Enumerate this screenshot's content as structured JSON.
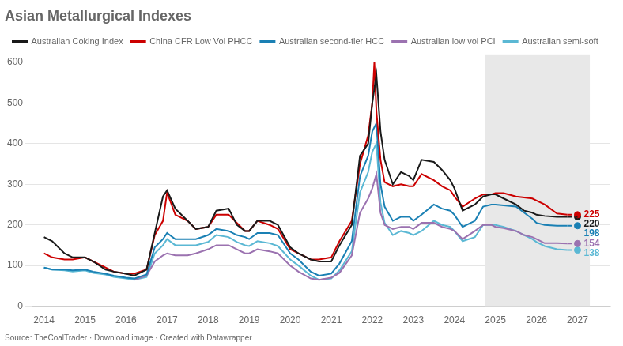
{
  "chart_data": {
    "type": "line",
    "title": "Asian Metallurgical Indexes",
    "subtitle": "Source: TheCoalTrader · Download image · Created with Datawrapper",
    "xlim": [
      2013.7,
      2027.8
    ],
    "xticks": [
      2014,
      2015,
      2016,
      2017,
      2018,
      2019,
      2020,
      2021,
      2022,
      2023,
      2024,
      2025,
      2026,
      2027
    ],
    "ylim": [
      0,
      620
    ],
    "yticks": [
      0,
      100,
      200,
      300,
      400,
      500,
      600
    ],
    "grid": "y",
    "legend": "upper left",
    "shaded_span": {
      "from": 2024.75,
      "to": 2027.3,
      "color": "#e8e8e8"
    },
    "series": [
      {
        "name": "Australian Coking Index",
        "color": "#1a1a1a",
        "line_style": "solid",
        "x": [
          2014.0,
          2014.2,
          2014.5,
          2014.7,
          2015.0,
          2015.2,
          2015.5,
          2015.7,
          2016.0,
          2016.2,
          2016.5,
          2016.7,
          2016.9,
          2017.0,
          2017.2,
          2017.5,
          2017.7,
          2018.0,
          2018.2,
          2018.5,
          2018.7,
          2018.9,
          2019.0,
          2019.2,
          2019.5,
          2019.7,
          2020.0,
          2020.2,
          2020.5,
          2020.7,
          2021.0,
          2021.2,
          2021.5,
          2021.7,
          2021.9,
          2022.0,
          2022.1,
          2022.2,
          2022.3,
          2022.5,
          2022.7,
          2022.9,
          2023.0,
          2023.2,
          2023.5,
          2023.7,
          2023.9,
          2024.0,
          2024.2,
          2024.5,
          2024.7,
          2024.9,
          2025.0,
          2025.2,
          2025.5,
          2025.7,
          2025.9,
          2026.0,
          2026.2,
          2026.5,
          2026.75
        ],
        "values": [
          170,
          160,
          130,
          120,
          120,
          110,
          90,
          85,
          80,
          75,
          90,
          180,
          270,
          285,
          240,
          210,
          190,
          195,
          235,
          240,
          200,
          185,
          185,
          210,
          210,
          200,
          145,
          130,
          115,
          110,
          110,
          150,
          200,
          370,
          400,
          500,
          570,
          430,
          360,
          300,
          330,
          320,
          310,
          360,
          355,
          335,
          310,
          290,
          235,
          250,
          270,
          275,
          275,
          265,
          250,
          235,
          230,
          225,
          222,
          220,
          220
        ],
        "projection": {
          "line_style": "dashed",
          "x": [
            2026.75,
            2027.0
          ],
          "values": [
            220,
            220
          ]
        }
      },
      {
        "name": "China CFR Low Vol PHCC",
        "color": "#cc0000",
        "line_style": "solid",
        "x": [
          2014.0,
          2014.2,
          2014.5,
          2014.7,
          2015.0,
          2015.2,
          2015.5,
          2015.7,
          2016.0,
          2016.2,
          2016.5,
          2016.7,
          2016.9,
          2017.0,
          2017.2,
          2017.5,
          2017.7,
          2018.0,
          2018.2,
          2018.5,
          2018.7,
          2018.9,
          2019.0,
          2019.2,
          2019.5,
          2019.7,
          2020.0,
          2020.2,
          2020.5,
          2020.7,
          2021.0,
          2021.2,
          2021.5,
          2021.7,
          2021.9,
          2022.0,
          2022.05,
          2022.1,
          2022.2,
          2022.3,
          2022.5,
          2022.7,
          2022.9,
          2023.0,
          2023.2,
          2023.5,
          2023.7,
          2023.9,
          2024.0,
          2024.2,
          2024.5,
          2024.7,
          2024.9,
          2025.0,
          2025.2,
          2025.5,
          2025.9,
          2026.0,
          2026.2,
          2026.5,
          2026.75
        ],
        "values": [
          130,
          120,
          115,
          115,
          120,
          110,
          95,
          85,
          80,
          80,
          90,
          175,
          210,
          280,
          225,
          210,
          190,
          195,
          225,
          225,
          205,
          185,
          185,
          210,
          200,
          190,
          140,
          130,
          115,
          115,
          120,
          160,
          210,
          350,
          420,
          500,
          600,
          480,
          360,
          305,
          295,
          300,
          295,
          295,
          325,
          310,
          295,
          285,
          270,
          245,
          265,
          275,
          275,
          278,
          278,
          270,
          265,
          260,
          250,
          228,
          225
        ],
        "projection": {
          "line_style": "dashed",
          "x": [
            2026.75,
            2027.0
          ],
          "values": [
            225,
            225
          ]
        }
      },
      {
        "name": "Australian second-tier HCC",
        "color": "#1a80b4",
        "line_style": "solid",
        "x": [
          2014.0,
          2014.2,
          2014.5,
          2014.7,
          2015.0,
          2015.2,
          2015.5,
          2015.7,
          2016.0,
          2016.2,
          2016.5,
          2016.7,
          2016.9,
          2017.0,
          2017.2,
          2017.5,
          2017.7,
          2018.0,
          2018.2,
          2018.5,
          2018.7,
          2018.9,
          2019.0,
          2019.2,
          2019.5,
          2019.7,
          2020.0,
          2020.2,
          2020.5,
          2020.7,
          2021.0,
          2021.2,
          2021.5,
          2021.7,
          2021.9,
          2022.0,
          2022.1,
          2022.2,
          2022.3,
          2022.5,
          2022.7,
          2022.9,
          2023.0,
          2023.2,
          2023.5,
          2023.7,
          2023.9,
          2024.0,
          2024.2,
          2024.5,
          2024.7,
          2024.9,
          2025.0,
          2025.2,
          2025.5,
          2025.7,
          2025.9,
          2026.0,
          2026.2,
          2026.5,
          2026.75
        ],
        "values": [
          95,
          90,
          90,
          88,
          90,
          85,
          80,
          75,
          70,
          68,
          78,
          145,
          165,
          180,
          165,
          165,
          165,
          175,
          190,
          185,
          175,
          170,
          165,
          180,
          180,
          175,
          130,
          115,
          85,
          75,
          80,
          105,
          160,
          320,
          370,
          430,
          450,
          300,
          245,
          210,
          220,
          220,
          210,
          225,
          250,
          240,
          235,
          225,
          195,
          210,
          245,
          250,
          250,
          248,
          245,
          230,
          215,
          205,
          200,
          198,
          198
        ],
        "projection": {
          "line_style": "dashed",
          "x": [
            2026.75,
            2027.0
          ],
          "values": [
            198,
            198
          ]
        }
      },
      {
        "name": "Australian low vol PCI",
        "color": "#9b72b0",
        "line_style": "solid",
        "x": [
          2016.2,
          2016.5,
          2016.7,
          2016.9,
          2017.0,
          2017.2,
          2017.5,
          2017.7,
          2018.0,
          2018.2,
          2018.5,
          2018.7,
          2018.9,
          2019.0,
          2019.2,
          2019.5,
          2019.7,
          2020.0,
          2020.2,
          2020.5,
          2020.7,
          2021.0,
          2021.2,
          2021.5,
          2021.7,
          2021.9,
          2022.0,
          2022.1,
          2022.2,
          2022.3,
          2022.5,
          2022.7,
          2022.9,
          2023.0,
          2023.2,
          2023.5,
          2023.7,
          2023.9,
          2024.0,
          2024.2,
          2024.5,
          2024.7,
          2024.9,
          2025.0,
          2025.2,
          2025.5,
          2025.7,
          2025.9,
          2026.0,
          2026.2,
          2026.5,
          2026.75
        ],
        "values": [
          65,
          75,
          110,
          125,
          130,
          125,
          125,
          130,
          140,
          150,
          150,
          140,
          130,
          130,
          140,
          135,
          130,
          100,
          85,
          68,
          65,
          70,
          82,
          125,
          230,
          265,
          290,
          325,
          230,
          200,
          190,
          195,
          195,
          190,
          205,
          205,
          195,
          190,
          185,
          165,
          185,
          200,
          200,
          195,
          192,
          185,
          175,
          170,
          165,
          155,
          155,
          154
        ],
        "projection": {
          "line_style": "dashed",
          "x": [
            2026.75,
            2027.0
          ],
          "values": [
            154,
            154
          ]
        }
      },
      {
        "name": "Australian semi-soft",
        "color": "#5bb8d4",
        "line_style": "solid",
        "x": [
          2014.0,
          2014.2,
          2014.5,
          2014.7,
          2015.0,
          2015.2,
          2015.5,
          2015.7,
          2016.0,
          2016.2,
          2016.5,
          2016.7,
          2016.9,
          2017.0,
          2017.2,
          2017.5,
          2017.7,
          2018.0,
          2018.2,
          2018.5,
          2018.7,
          2018.9,
          2019.0,
          2019.2,
          2019.5,
          2019.7,
          2020.0,
          2020.2,
          2020.5,
          2020.7,
          2021.0,
          2021.2,
          2021.5,
          2021.7,
          2021.9,
          2022.0,
          2022.1,
          2022.2,
          2022.3,
          2022.5,
          2022.7,
          2022.9,
          2023.0,
          2023.2,
          2023.5,
          2023.7,
          2023.9,
          2024.0,
          2024.2,
          2024.5,
          2024.7,
          2024.9,
          2025.0,
          2025.2,
          2025.5,
          2025.7,
          2025.9,
          2026.0,
          2026.2,
          2026.5,
          2026.75
        ],
        "values": [
          95,
          90,
          88,
          85,
          88,
          82,
          78,
          72,
          68,
          65,
          72,
          130,
          150,
          165,
          150,
          150,
          150,
          158,
          175,
          170,
          158,
          150,
          148,
          160,
          155,
          148,
          115,
          100,
          75,
          65,
          68,
          88,
          135,
          280,
          330,
          380,
          400,
          255,
          205,
          175,
          185,
          180,
          175,
          185,
          210,
          200,
          195,
          185,
          160,
          170,
          200,
          200,
          200,
          195,
          185,
          175,
          165,
          158,
          148,
          140,
          138
        ],
        "projection": {
          "line_style": "dashed",
          "x": [
            2026.75,
            2027.0
          ],
          "values": [
            138,
            138
          ]
        }
      }
    ],
    "end_labels": [
      {
        "series": "China CFR Low Vol PHCC",
        "x": 2027.0,
        "value": 225,
        "color": "#cc0000",
        "marker": "circle"
      },
      {
        "series": "Australian Coking Index",
        "x": 2027.0,
        "value": 220,
        "color": "#1a1a1a",
        "marker": "circle"
      },
      {
        "series": "Australian second-tier HCC",
        "x": 2027.0,
        "value": 198,
        "color": "#1a80b4",
        "marker": "circle"
      },
      {
        "series": "Australian low vol PCI",
        "x": 2027.0,
        "value": 154,
        "color": "#9b72b0",
        "marker": "circle"
      },
      {
        "series": "Australian semi-soft",
        "x": 2027.0,
        "value": 138,
        "color": "#5bb8d4",
        "marker": "circle"
      }
    ]
  }
}
